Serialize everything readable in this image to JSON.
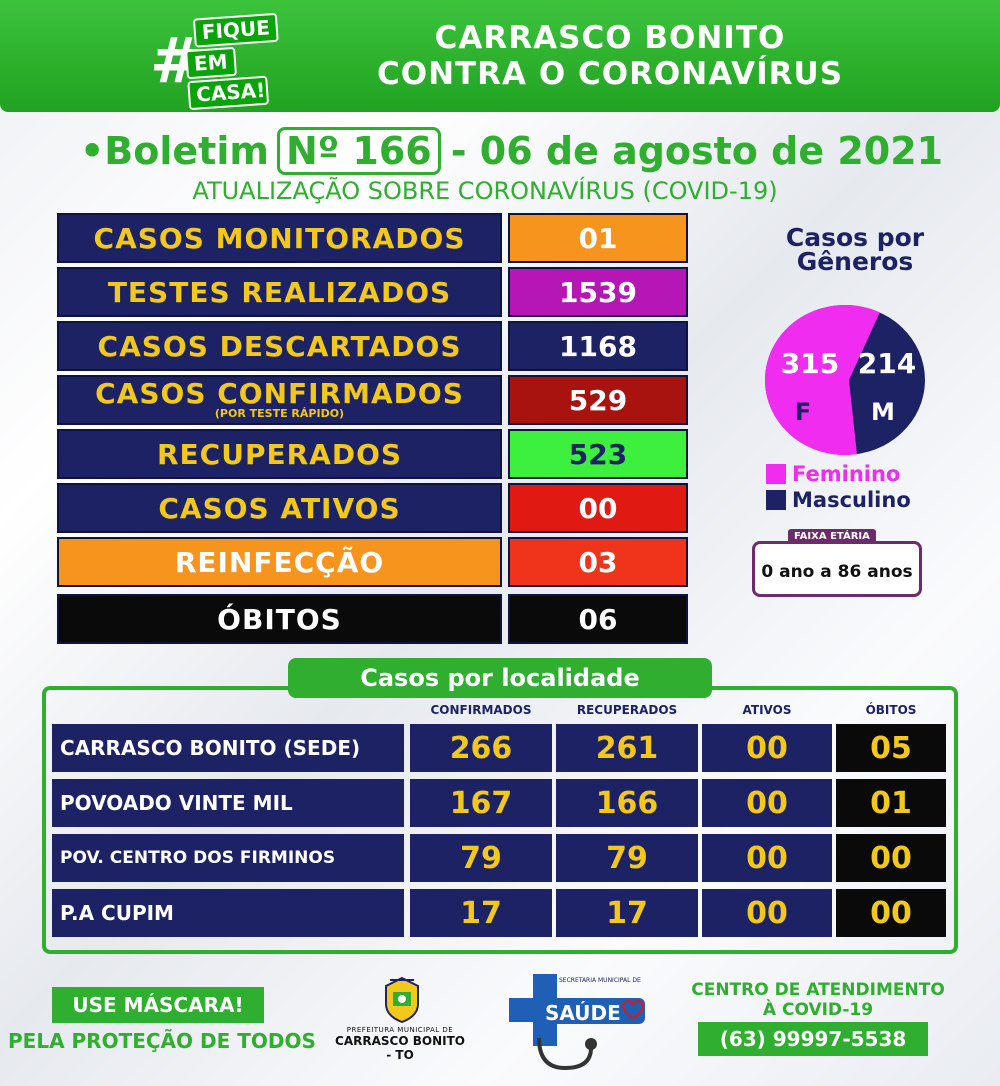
{
  "header": {
    "hashtag": "#",
    "fique_lines": [
      "FIQUE",
      "EM",
      "CASA!"
    ],
    "title_line1": "CARRASCO BONITO",
    "title_line2": "CONTRA O CORONAVÍRUS"
  },
  "bulletin": {
    "prefix": "•Boletim",
    "number": "Nº 166",
    "date": "- 06 de agosto de 2021",
    "subtitle": "ATUALIZAÇÃO SOBRE CORONAVÍRUS (COVID-19)"
  },
  "stats": [
    {
      "label": "CASOS MONITORADOS",
      "value": "01",
      "color": "#f7941d"
    },
    {
      "label": "TESTES REALIZADOS",
      "value": "1539",
      "color": "#b516b5"
    },
    {
      "label": "CASOS DESCARTADOS",
      "value": "1168",
      "color": "#1c2264"
    },
    {
      "label": "CASOS CONFIRMADOS",
      "sublabel": "(POR TESTE RÁPIDO)",
      "value": "529",
      "color": "#a8120f"
    },
    {
      "label": "RECUPERADOS",
      "value": "523",
      "color": "#3ef03e"
    },
    {
      "label": "CASOS ATIVOS",
      "value": "00",
      "color": "#e01a12"
    },
    {
      "label": "REINFECÇÃO",
      "value": "03",
      "color": "#f0341c",
      "label_bg": "#f7941d"
    },
    {
      "label": "ÓBITOS",
      "value": "06",
      "color": "#0a0a0a",
      "label_bg": "#0a0a0a"
    }
  ],
  "gender": {
    "title_line1": "Casos por",
    "title_line2": "Gêneros",
    "female_value": "315",
    "female_letter": "F",
    "male_value": "214",
    "male_letter": "M",
    "legend_female": "Feminino",
    "legend_male": "Masculino",
    "female_color": "#f02cf0",
    "male_color": "#1c2264",
    "faixa_label": "FAIXA ETÁRIA",
    "faixa_value": "0 ano a 86 anos"
  },
  "localidade": {
    "title": "Casos por localidade",
    "columns": [
      "CONFIRMADOS",
      "RECUPERADOS",
      "ATIVOS",
      "ÓBITOS"
    ],
    "rows": [
      {
        "name": "CARRASCO BONITO (SEDE)",
        "values": [
          "266",
          "261",
          "00",
          "05"
        ]
      },
      {
        "name": "POVOADO VINTE MIL",
        "values": [
          "167",
          "166",
          "00",
          "01"
        ]
      },
      {
        "name": "POV. CENTRO DOS FIRMINOS",
        "values": [
          "79",
          "79",
          "00",
          "00"
        ]
      },
      {
        "name": "P.A CUPIM",
        "values": [
          "17",
          "17",
          "00",
          "00"
        ]
      }
    ]
  },
  "footer": {
    "use_mask": "USE MÁSCARA!",
    "protection": "PELA PROTEÇÃO DE TODOS",
    "pref_line1": "PREFEITURA MUNICIPAL DE",
    "pref_line2": "CARRASCO BONITO - TO",
    "saude_top": "SECRETARIA MUNICIPAL DE",
    "saude": "SAÚDE",
    "centro_line1": "CENTRO DE ATENDIMENTO",
    "centro_line2": "À COVID-19",
    "phone": "(63) 99997-5538"
  }
}
